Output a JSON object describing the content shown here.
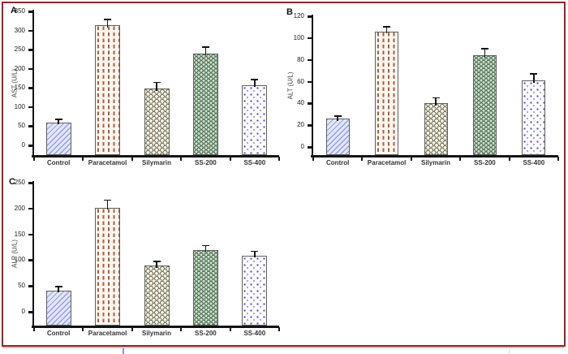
{
  "figure": {
    "border_color": "#962427",
    "background": "#ffffff",
    "axis_color": "#141414"
  },
  "chart_data": [
    {
      "type": "bar",
      "panel_label": "A",
      "title": "",
      "xlabel": "",
      "ylabel": "AST (U/L)",
      "ylim": [
        0,
        350
      ],
      "yticks": [
        0,
        50,
        100,
        150,
        200,
        250,
        300,
        350
      ],
      "categories": [
        "Control",
        "Paracetamol",
        "Silymarin",
        "SS-200",
        "SS-400"
      ],
      "values": [
        60,
        313,
        148,
        240,
        157
      ],
      "errors": [
        8,
        16,
        16,
        17,
        15
      ],
      "grid": false,
      "legend": "none"
    },
    {
      "type": "bar",
      "panel_label": "B",
      "title": "",
      "xlabel": "",
      "ylabel": "ALT (U/L)",
      "ylim": [
        0,
        120
      ],
      "yticks": [
        0,
        20,
        40,
        60,
        80,
        100,
        120
      ],
      "categories": [
        "Control",
        "Paracetamol",
        "Silymarin",
        "SS-200",
        "SS-400"
      ],
      "values": [
        26,
        106,
        40,
        84,
        61
      ],
      "errors": [
        2,
        4,
        5,
        6,
        6
      ],
      "grid": false,
      "legend": "none"
    },
    {
      "type": "bar",
      "panel_label": "C",
      "title": "",
      "xlabel": "",
      "ylabel": "ALP (U/L)",
      "ylim": [
        0,
        250
      ],
      "yticks": [
        0,
        50,
        100,
        150,
        200,
        250
      ],
      "categories": [
        "Control",
        "Paracetamol",
        "Silymarin",
        "SS-200",
        "SS-400"
      ],
      "values": [
        41,
        202,
        89,
        120,
        109
      ],
      "errors": [
        7,
        14,
        8,
        8,
        8
      ],
      "grid": false,
      "legend": "none"
    }
  ],
  "bar_styles": [
    {
      "category": "Control",
      "pattern": "diagonal-hatch",
      "fg": "#96a0da",
      "bg": "#e2e6f8"
    },
    {
      "category": "Paracetamol",
      "pattern": "vertical-dashes",
      "fg": "#a75f3c",
      "bg": "#fdf7f2"
    },
    {
      "category": "Silymarin",
      "pattern": "fish-scale",
      "fg": "#70705a",
      "bg": "#f4f3e6"
    },
    {
      "category": "SS-200",
      "pattern": "fish-scale-dense",
      "fg": "#42684c",
      "bg": "#d2e0d0"
    },
    {
      "category": "SS-400",
      "pattern": "dot-grid",
      "fg": "#655eb0",
      "bg": "#fdfdff"
    }
  ]
}
